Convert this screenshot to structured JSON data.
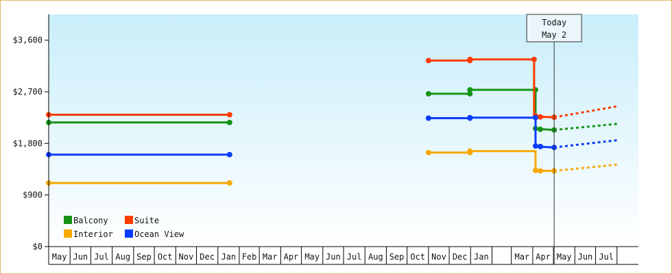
{
  "chart_data": {
    "type": "line",
    "title": "",
    "xlabel": "",
    "ylabel": "",
    "ylim": [
      0,
      4050
    ],
    "y_ticks": [
      0,
      900,
      1800,
      2700,
      3600
    ],
    "y_tick_labels": [
      "$0",
      "$900",
      "$1,800",
      "$2,700",
      "$3,600"
    ],
    "grid": false,
    "background_gradient": [
      "#c9eefa",
      "#ffffff"
    ],
    "axis_months": [
      {
        "label": "May",
        "date": "2023-05-01"
      },
      {
        "label": "Jun",
        "date": "2023-06-01"
      },
      {
        "label": "Jul",
        "date": "2023-07-01"
      },
      {
        "label": "Aug",
        "date": "2023-08-01"
      },
      {
        "label": "Sep",
        "date": "2023-09-01"
      },
      {
        "label": "Oct",
        "date": "2023-10-01"
      },
      {
        "label": "Nov",
        "date": "2023-11-01"
      },
      {
        "label": "Dec",
        "date": "2023-12-01"
      },
      {
        "label": "Jan",
        "date": "2024-01-01"
      },
      {
        "label": "Feb",
        "date": "2024-02-01"
      },
      {
        "label": "Mar",
        "date": "2024-03-01"
      },
      {
        "label": "Apr",
        "date": "2024-04-01"
      },
      {
        "label": "May",
        "date": "2024-05-01"
      },
      {
        "label": "Jun",
        "date": "2024-06-01"
      },
      {
        "label": "Jul",
        "date": "2024-07-01"
      },
      {
        "label": "Aug",
        "date": "2024-08-01"
      },
      {
        "label": "Sep",
        "date": "2024-09-01"
      },
      {
        "label": "Oct",
        "date": "2024-10-01"
      },
      {
        "label": "Nov",
        "date": "2024-11-01"
      },
      {
        "label": "Dec",
        "date": "2024-12-01"
      },
      {
        "label": "Jan",
        "date": "2025-01-01"
      },
      {
        "label": "",
        "date": "2025-02-01"
      },
      {
        "label": "Mar",
        "date": "2025-03-01"
      },
      {
        "label": "Apr",
        "date": "2025-04-01"
      },
      {
        "label": "May",
        "date": "2025-05-01"
      },
      {
        "label": "Jun",
        "date": "2025-06-01"
      },
      {
        "label": "Jul",
        "date": "2025-07-01"
      },
      {
        "label": "",
        "date": "2025-08-01"
      }
    ],
    "today": {
      "line1": "Today",
      "line2": "May 2",
      "date": "2025-05-02"
    },
    "legend": {
      "placement": "bottom-left"
    },
    "series": [
      {
        "name": "Balcony",
        "color": "#149414",
        "segments": [
          {
            "style": "solid",
            "points": [
              [
                "2023-05-01",
                2165
              ],
              [
                "2024-01-18",
                2165
              ]
            ]
          },
          {
            "style": "solid",
            "points": [
              [
                "2024-11-01",
                2665
              ],
              [
                "2024-12-31",
                2665
              ],
              [
                "2024-12-31",
                2735
              ],
              [
                "2025-04-05",
                2735
              ],
              [
                "2025-04-05",
                2055
              ],
              [
                "2025-05-02",
                2035
              ]
            ]
          },
          {
            "style": "dashed",
            "points": [
              [
                "2025-05-02",
                2035
              ],
              [
                "2025-08-01",
                2140
              ]
            ]
          }
        ],
        "markers": [
          [
            "2023-05-01",
            2165
          ],
          [
            "2024-01-18",
            2165
          ],
          [
            "2024-11-01",
            2665
          ],
          [
            "2024-12-31",
            2665
          ],
          [
            "2024-12-31",
            2735
          ],
          [
            "2025-04-05",
            2735
          ],
          [
            "2025-04-05",
            2060
          ],
          [
            "2025-04-12",
            2045
          ],
          [
            "2025-05-02",
            2035
          ]
        ]
      },
      {
        "name": "Suite",
        "color": "#ff3c00",
        "segments": [
          {
            "style": "solid",
            "points": [
              [
                "2023-05-01",
                2300
              ],
              [
                "2024-01-18",
                2300
              ]
            ]
          },
          {
            "style": "solid",
            "points": [
              [
                "2024-11-01",
                3245
              ],
              [
                "2024-12-31",
                3245
              ],
              [
                "2024-12-31",
                3265
              ],
              [
                "2025-04-03",
                3265
              ],
              [
                "2025-04-03",
                2270
              ],
              [
                "2025-05-02",
                2255
              ]
            ]
          },
          {
            "style": "dashed",
            "points": [
              [
                "2025-05-02",
                2255
              ],
              [
                "2025-08-01",
                2445
              ]
            ]
          }
        ],
        "markers": [
          [
            "2023-05-01",
            2300
          ],
          [
            "2024-01-18",
            2300
          ],
          [
            "2024-11-01",
            3245
          ],
          [
            "2024-12-31",
            3245
          ],
          [
            "2024-12-31",
            3265
          ],
          [
            "2025-04-03",
            3265
          ],
          [
            "2025-04-05",
            2280
          ],
          [
            "2025-04-12",
            2262
          ],
          [
            "2025-05-02",
            2255
          ]
        ]
      },
      {
        "name": "Interior",
        "color": "#f7a800",
        "segments": [
          {
            "style": "solid",
            "points": [
              [
                "2023-05-01",
                1110
              ],
              [
                "2024-01-18",
                1110
              ]
            ]
          },
          {
            "style": "solid",
            "points": [
              [
                "2024-11-01",
                1640
              ],
              [
                "2024-12-31",
                1640
              ],
              [
                "2024-12-31",
                1665
              ],
              [
                "2025-04-05",
                1665
              ],
              [
                "2025-04-05",
                1325
              ],
              [
                "2025-05-02",
                1320
              ]
            ]
          },
          {
            "style": "dashed",
            "points": [
              [
                "2025-05-02",
                1320
              ],
              [
                "2025-08-01",
                1430
              ]
            ]
          }
        ],
        "markers": [
          [
            "2023-05-01",
            1110
          ],
          [
            "2024-01-18",
            1110
          ],
          [
            "2024-11-01",
            1640
          ],
          [
            "2024-12-31",
            1640
          ],
          [
            "2024-12-31",
            1665
          ],
          [
            "2025-04-05",
            1330
          ],
          [
            "2025-04-12",
            1320
          ],
          [
            "2025-05-02",
            1320
          ]
        ]
      },
      {
        "name": "Ocean View",
        "color": "#0a3cff",
        "segments": [
          {
            "style": "solid",
            "points": [
              [
                "2023-05-01",
                1605
              ],
              [
                "2024-01-18",
                1605
              ]
            ]
          },
          {
            "style": "solid",
            "points": [
              [
                "2024-11-01",
                2240
              ],
              [
                "2024-12-31",
                2240
              ],
              [
                "2024-12-31",
                2250
              ],
              [
                "2025-04-05",
                2250
              ],
              [
                "2025-04-05",
                1745
              ],
              [
                "2025-05-02",
                1730
              ]
            ]
          },
          {
            "style": "dashed",
            "points": [
              [
                "2025-05-02",
                1730
              ],
              [
                "2025-08-01",
                1855
              ]
            ]
          }
        ],
        "markers": [
          [
            "2023-05-01",
            1605
          ],
          [
            "2024-01-18",
            1605
          ],
          [
            "2024-11-01",
            2240
          ],
          [
            "2024-12-31",
            2240
          ],
          [
            "2024-12-31",
            2250
          ],
          [
            "2025-04-05",
            2250
          ],
          [
            "2025-04-05",
            1755
          ],
          [
            "2025-04-12",
            1745
          ],
          [
            "2025-05-02",
            1730
          ]
        ]
      }
    ]
  }
}
